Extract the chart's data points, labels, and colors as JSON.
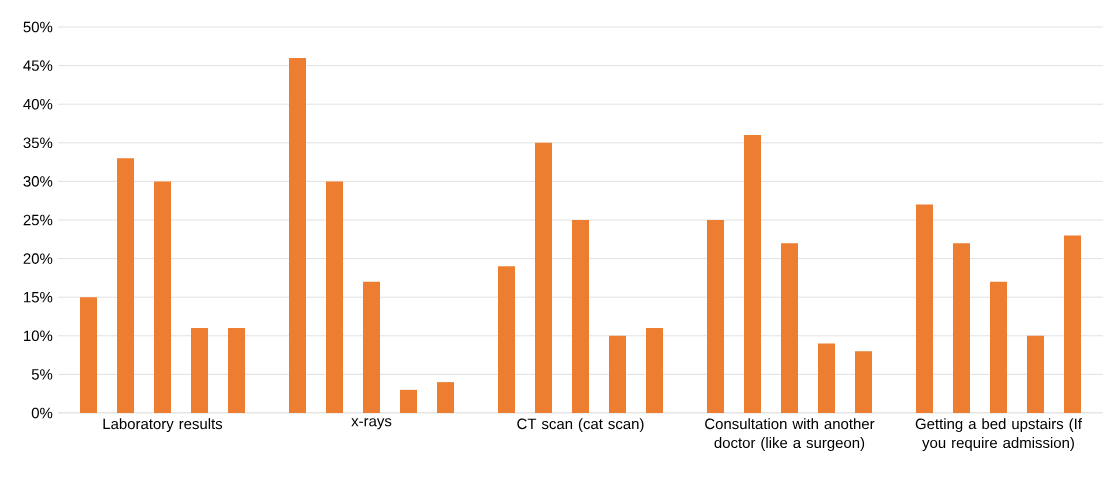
{
  "chart_data": {
    "type": "bar",
    "categories": [
      "Laboratory results",
      "x-rays",
      "CT scan (cat scan)",
      "Consultation with another doctor (like a surgeon)",
      "Getting a bed upstairs (If you require admission)"
    ],
    "series": [
      {
        "color": "#ed7d31",
        "values": [
          15,
          46,
          19,
          25,
          27
        ]
      },
      {
        "color": "#ed7d31",
        "values": [
          33,
          30,
          35,
          36,
          22
        ]
      },
      {
        "color": "#ed7d31",
        "values": [
          30,
          17,
          25,
          22,
          17
        ]
      },
      {
        "color": "#ed7d31",
        "values": [
          11,
          3,
          10,
          9,
          10
        ]
      },
      {
        "color": "#ed7d31",
        "values": [
          11,
          4,
          11,
          8,
          23
        ]
      }
    ],
    "ylim": [
      0,
      50
    ],
    "yticks": [
      {
        "value": 0,
        "label": "0%"
      },
      {
        "value": 5,
        "label": "5%"
      },
      {
        "value": 10,
        "label": "10%"
      },
      {
        "value": 15,
        "label": "15%"
      },
      {
        "value": 20,
        "label": "20%"
      },
      {
        "value": 25,
        "label": "25%"
      },
      {
        "value": 30,
        "label": "30%"
      },
      {
        "value": 35,
        "label": "35%"
      },
      {
        "value": 40,
        "label": "40%"
      },
      {
        "value": 45,
        "label": "45%"
      },
      {
        "value": 50,
        "label": "50%"
      }
    ],
    "grid": "y"
  }
}
